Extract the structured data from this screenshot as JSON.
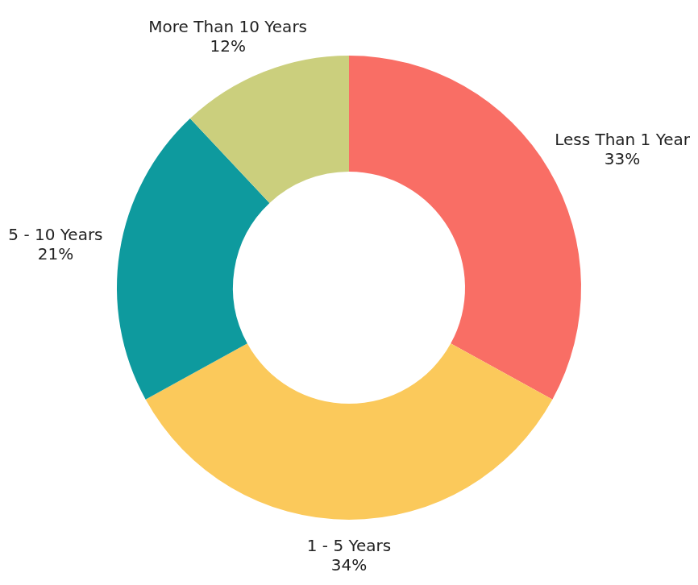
{
  "chart_data": {
    "type": "doughnut",
    "categories": [
      "Less Than 1 Year",
      "1 - 5 Years",
      "5 - 10 Years",
      "More Than 10 Years"
    ],
    "values": [
      33,
      34,
      21,
      12
    ],
    "value_labels": [
      "33%",
      "34%",
      "21%",
      "12%"
    ],
    "colors": [
      "#f96e65",
      "#fbc95b",
      "#0e9a9e",
      "#cbcf7d"
    ],
    "data_labels": true
  }
}
